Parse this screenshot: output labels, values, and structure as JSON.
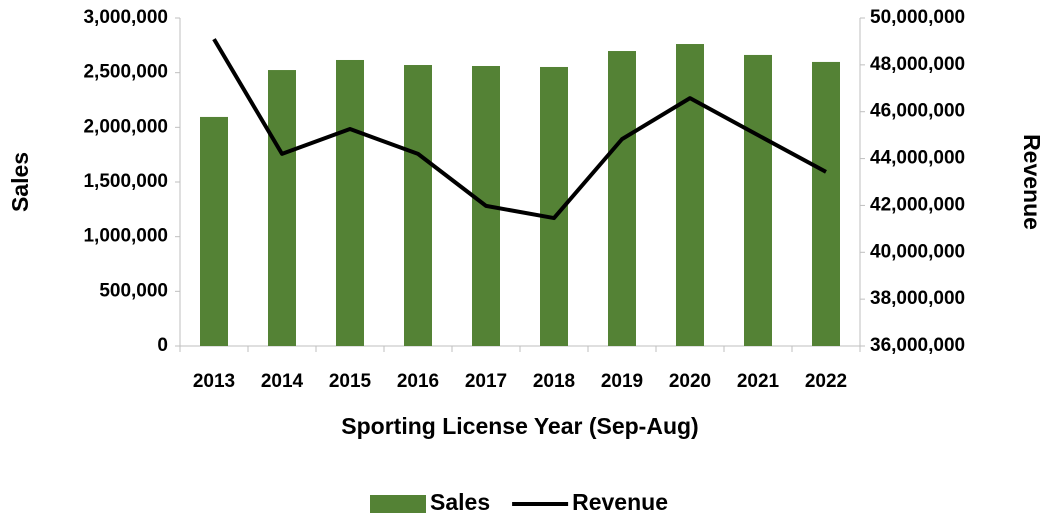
{
  "chart_data": {
    "type": "bar",
    "x_label": "Sporting License Year (Sep-Aug)",
    "y_label": "Sales",
    "y2_label": "Revenue",
    "categories": [
      "2013",
      "2014",
      "2015",
      "2016",
      "2017",
      "2018",
      "2019",
      "2020",
      "2021",
      "2022"
    ],
    "series": [
      {
        "name": "Sales",
        "type": "bar",
        "color": "#548235",
        "values": [
          2095000,
          2524000,
          2616000,
          2570000,
          2561000,
          2552000,
          2698000,
          2762000,
          2662000,
          2598000
        ]
      },
      {
        "name": "Revenue",
        "type": "line",
        "color": "#000000",
        "axis": "y2",
        "values": [
          49100000,
          44200000,
          45260000,
          44200000,
          41980000,
          41460000,
          44830000,
          46580000,
          45000000,
          43430000
        ]
      }
    ],
    "ylim": [
      0,
      3000000
    ],
    "yticks": [
      0,
      {
        "value": 500000,
        "label": "500,000"
      },
      {
        "value": 1000000,
        "label": "1,000,000"
      },
      {
        "value": 1500000,
        "label": "1,500,000"
      },
      {
        "value": 2000000,
        "label": "2,000,000"
      },
      {
        "value": 2500000,
        "label": "2,500,000"
      },
      {
        "value": 3000000,
        "label": "3,000,000"
      }
    ],
    "y2lim": [
      36000000,
      50000000
    ],
    "y2ticks": [
      {
        "value": 36000000,
        "label": "36,000,000"
      },
      {
        "value": 38000000,
        "label": "38,000,000"
      },
      {
        "value": 40000000,
        "label": "40,000,000"
      },
      {
        "value": 42000000,
        "label": "42,000,000"
      },
      {
        "value": 44000000,
        "label": "44,000,000"
      },
      {
        "value": 46000000,
        "label": "46,000,000"
      },
      {
        "value": 48000000,
        "label": "48,000,000"
      },
      {
        "value": 50000000,
        "label": "50,000,000"
      }
    ],
    "grid": false,
    "legend": "bottom"
  }
}
